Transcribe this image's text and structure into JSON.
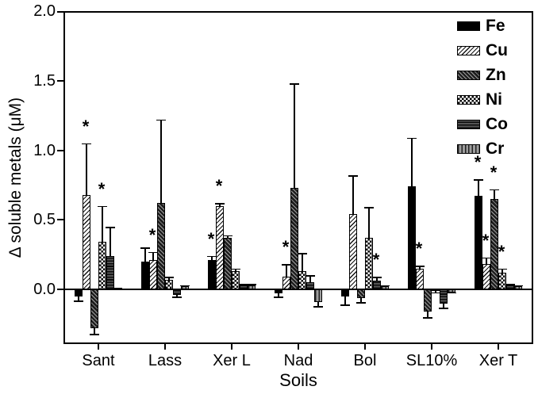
{
  "colors": {
    "foreground": "#000000",
    "background": "#ffffff",
    "dark_gray": "#555555",
    "mid_gray": "#9d9d9d"
  },
  "chart_data": {
    "type": "bar",
    "title": "",
    "xlabel": "Soils",
    "ylabel": "Δ soluble metals (μM)",
    "categories": [
      "Sant",
      "Lass",
      "Xer L",
      "Nad",
      "Bol",
      "SL10%",
      "Xer T"
    ],
    "yticks": [
      0.0,
      0.5,
      1.0,
      1.5,
      2.0
    ],
    "ytick_labels": [
      "0.0",
      "0.5",
      "1.0",
      "1.5",
      "2.0"
    ],
    "ylim": [
      -0.38,
      2.0
    ],
    "grid": false,
    "legend_position": "top-right",
    "error_bars": true,
    "significance_marker": "*",
    "series": [
      {
        "name": "Fe",
        "pattern": "solid-black",
        "values": [
          -0.05,
          0.2,
          0.21,
          -0.03,
          -0.05,
          0.74,
          0.67
        ],
        "errors": [
          0.04,
          0.1,
          0.03,
          0.03,
          0.07,
          0.35,
          0.12
        ],
        "sig": [
          false,
          false,
          true,
          false,
          false,
          false,
          true
        ]
      },
      {
        "name": "Cu",
        "pattern": "diagonal-up-light",
        "values": [
          0.68,
          0.21,
          0.6,
          0.09,
          0.54,
          0.15,
          0.18
        ],
        "errors": [
          0.37,
          0.06,
          0.02,
          0.09,
          0.28,
          0.02,
          0.05
        ],
        "sig": [
          true,
          true,
          true,
          true,
          false,
          true,
          true
        ]
      },
      {
        "name": "Zn",
        "pattern": "diagonal-down-dark",
        "values": [
          -0.28,
          0.62,
          0.37,
          0.73,
          -0.06,
          -0.16,
          0.65
        ],
        "errors": [
          0.05,
          0.6,
          0.02,
          0.75,
          0.04,
          0.05,
          0.07
        ],
        "sig": [
          false,
          false,
          false,
          false,
          false,
          false,
          true
        ]
      },
      {
        "name": "Ni",
        "pattern": "checkerboard",
        "values": [
          0.34,
          0.07,
          0.13,
          0.13,
          0.37,
          -0.01,
          0.12
        ],
        "errors": [
          0.26,
          0.02,
          0.02,
          0.13,
          0.22,
          0.02,
          0.03
        ],
        "sig": [
          true,
          false,
          false,
          false,
          false,
          false,
          true
        ]
      },
      {
        "name": "Co",
        "pattern": "horizontal-stripes-dark",
        "values": [
          0.24,
          -0.04,
          0.03,
          0.05,
          0.06,
          -0.1,
          0.03
        ],
        "errors": [
          0.21,
          0.02,
          0.01,
          0.05,
          0.03,
          0.04,
          0.01
        ],
        "sig": [
          false,
          false,
          false,
          false,
          true,
          false,
          false
        ]
      },
      {
        "name": "Cr",
        "pattern": "vertical-stripes-gray",
        "values": [
          0.01,
          0.02,
          0.03,
          -0.09,
          0.02,
          -0.02,
          0.02
        ],
        "errors": [
          0.0,
          0.01,
          0.01,
          0.04,
          0.01,
          0.01,
          0.01
        ],
        "sig": [
          false,
          false,
          false,
          false,
          false,
          false,
          false
        ]
      }
    ]
  }
}
